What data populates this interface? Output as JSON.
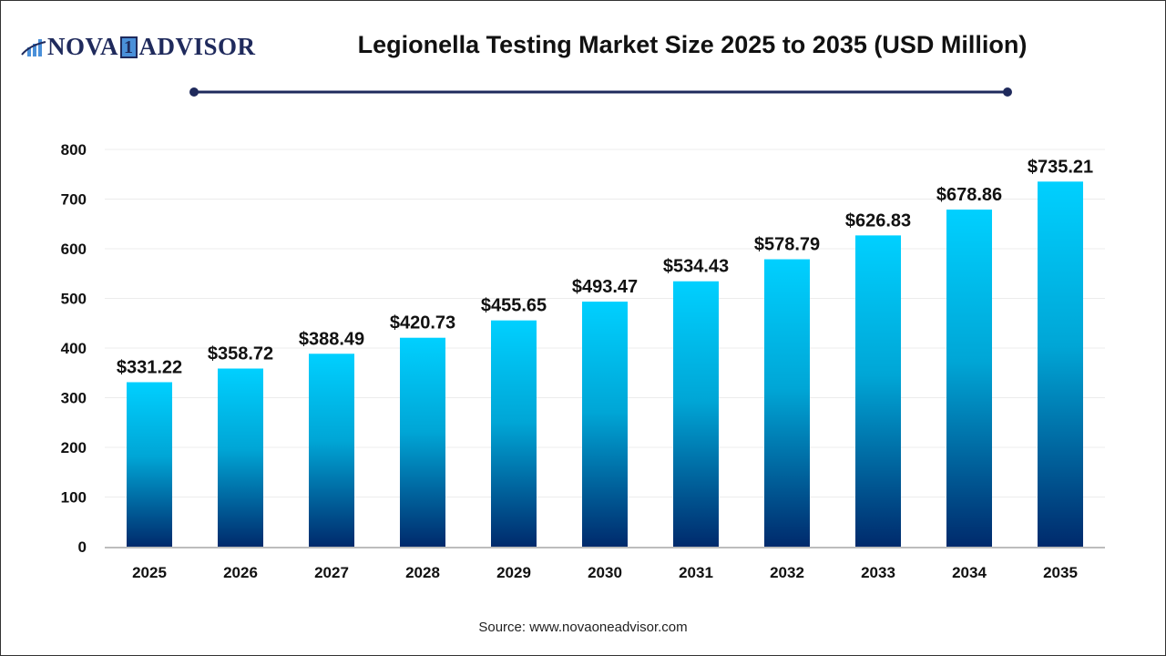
{
  "logo": {
    "text_left": "NOVA",
    "text_one": "1",
    "text_right": "ADVISOR"
  },
  "title": "Legionella Testing Market Size 2025 to 2035 (USD Million)",
  "source": "Source: www.novaoneadvisor.com",
  "colors": {
    "bar_top": "#00d0ff",
    "bar_bottom": "#002a6c",
    "title_rule": "#1f2a5c"
  },
  "chart_data": {
    "type": "bar",
    "title": "Legionella Testing Market Size 2025 to 2035 (USD Million)",
    "categories": [
      "2025",
      "2026",
      "2027",
      "2028",
      "2029",
      "2030",
      "2031",
      "2032",
      "2033",
      "2034",
      "2035"
    ],
    "values": [
      331.22,
      358.72,
      388.49,
      420.73,
      455.65,
      493.47,
      534.43,
      578.79,
      626.83,
      678.86,
      735.21
    ],
    "data_labels": [
      "$331.22",
      "$358.72",
      "$388.49",
      "$420.73",
      "$455.65",
      "$493.47",
      "$534.43",
      "$578.79",
      "$626.83",
      "$678.86",
      "$735.21"
    ],
    "yticks": [
      "0",
      "100",
      "200",
      "300",
      "400",
      "500",
      "600",
      "700",
      "800"
    ],
    "ylim": [
      0,
      800
    ],
    "grid": true,
    "xlabel": "",
    "ylabel": ""
  }
}
